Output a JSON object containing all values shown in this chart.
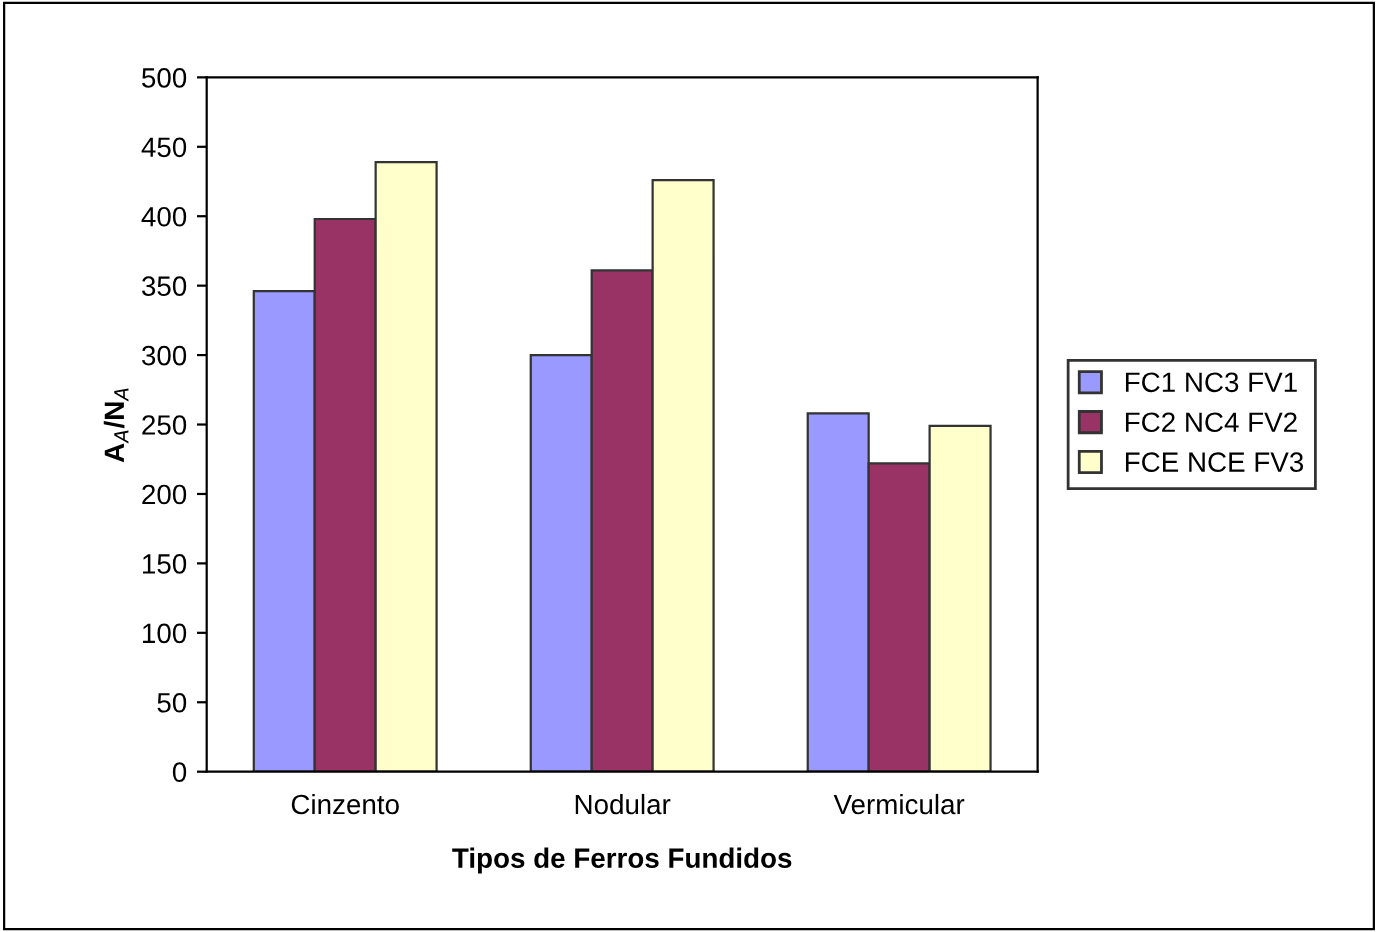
{
  "chart_data": {
    "type": "bar",
    "xlabel": "Tipos de Ferros Fundidos",
    "ylabel": "A$_{A}$/N$_{A}$",
    "categories": [
      "Cinzento",
      "Nodular",
      "Vermicular"
    ],
    "series": [
      {
        "name": "FC1 NC3 FV1",
        "color": "#9999ff",
        "values": [
          346,
          300,
          258
        ]
      },
      {
        "name": "FC2 NC4 FV2",
        "color": "#993366",
        "values": [
          398,
          361,
          222
        ]
      },
      {
        "name": "FCE NCE FV3",
        "color": "#ffffcc",
        "values": [
          439,
          426,
          249
        ]
      }
    ],
    "ylim": [
      0,
      500
    ],
    "yticks": [
      0,
      50,
      100,
      150,
      200,
      250,
      300,
      350,
      400,
      450,
      500
    ],
    "grid": false,
    "legend": "right"
  }
}
